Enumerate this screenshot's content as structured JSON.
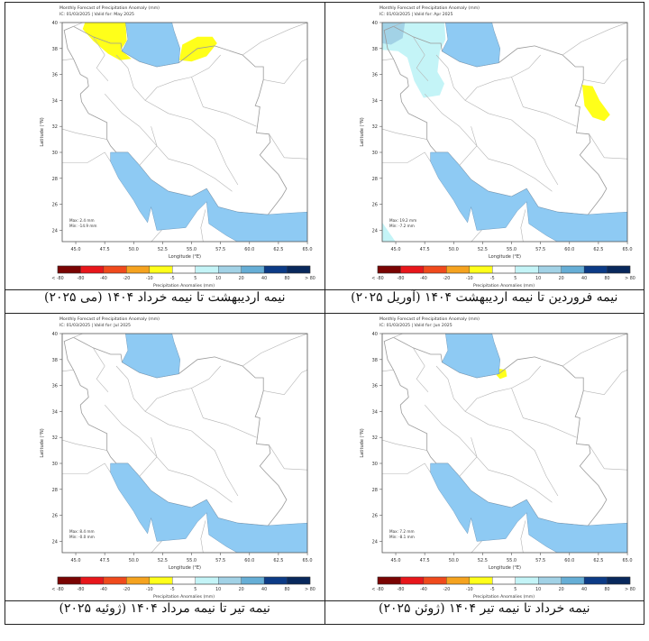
{
  "colors": {
    "water": "#8ecaf3",
    "border": "#9a9a9a",
    "colorbar": [
      "#7a0403",
      "#e8161b",
      "#f04a1c",
      "#f5a31f",
      "#ffff1a",
      "#ffffff",
      "#c4f4f7",
      "#a2d2e6",
      "#66aed6",
      "#0c3b86",
      "#08285c"
    ]
  },
  "colorbar_labels": [
    "< -80",
    "-80",
    "-40",
    "-20",
    "-10",
    "-5",
    "5",
    "10",
    "20",
    "40",
    "80",
    "> 80"
  ],
  "colorbar_title": "Precipitation Anomalies (mm)",
  "xlabel": "Longitude (°E)",
  "ylabel": "Latitude (°N)",
  "xticks": [
    "45.0",
    "47.5",
    "50.0",
    "52.5",
    "55.0",
    "57.5",
    "60.0",
    "62.5",
    "65.0"
  ],
  "yticks": [
    "24",
    "26",
    "28",
    "30",
    "32",
    "34",
    "36",
    "38",
    "40"
  ],
  "panels": [
    {
      "title": "Monthly Forecast of Precipitation Anomaly (mm)",
      "subtitle": "IC: 01/03/2025 | Valid for: May 2025",
      "max": "Max: 2.4 mm",
      "min": "Min: -14.9 mm",
      "caption": "نیمه اردیبهشت تا نیمه خرداد ۱۴۰۴ (می ۲۰۲۵)",
      "anomalies": [
        "-10 to -5 mm (yellow) over northwest Iran and east of the Caspian Sea"
      ]
    },
    {
      "title": "Monthly Forecast of Precipitation Anomaly (mm)",
      "subtitle": "IC: 01/03/2025 | Valid for: Apr 2025",
      "max": "Max: 19.2 mm",
      "min": "Min: -7.2 mm",
      "caption": "نیمه فروردین تا نیمه اردیبهشت ۱۴۰۴ (آوریل ۲۰۲۵)",
      "anomalies": [
        "5 to 10 mm (light cyan) over western Iran",
        "10 to 20 mm in northwest corner",
        "-10 to -5 mm (yellow) on eastern border"
      ]
    },
    {
      "title": "Monthly Forecast of Precipitation Anomaly (mm)",
      "subtitle": "IC: 01/03/2025 | Valid for: Jul 2025",
      "max": "Max: 8.4 mm",
      "min": "Min: -0.0 mm",
      "caption": "نیمه تیر تا نیمه مرداد ۱۴۰۴ (ژوئیه ۲۰۲۵)",
      "anomalies": []
    },
    {
      "title": "Monthly Forecast of Precipitation Anomaly (mm)",
      "subtitle": "IC: 01/03/2025 | Valid for: Jun 2025",
      "max": "Max: 7.2 mm",
      "min": "Min: -8.1 mm",
      "caption": "نیمه خرداد تا نیمه تیر ۱۴۰۴ (ژوئن ۲۰۲۵)",
      "anomalies": [
        "-10 to -5 mm (yellow) small area southeast of the Caspian Sea"
      ]
    }
  ],
  "chart_data": {
    "type": "heatmap",
    "xlim": [
      43.8,
      65.0
    ],
    "ylim": [
      23.1,
      40.0
    ],
    "xlabel": "Longitude (°E)",
    "ylabel": "Latitude (°N)",
    "colorbar_bins": [
      "< -80",
      "-80",
      "-40",
      "-20",
      "-10",
      "-5",
      "5",
      "10",
      "20",
      "40",
      "80",
      "> 80"
    ],
    "legend": "bottom"
  }
}
